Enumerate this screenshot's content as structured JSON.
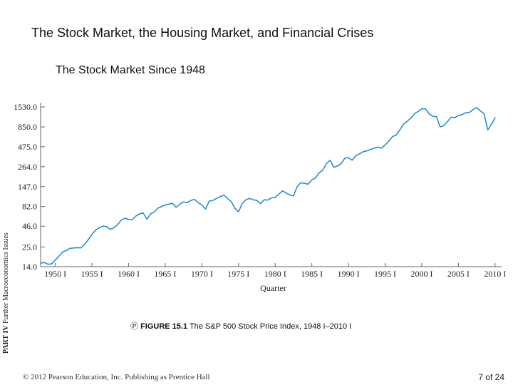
{
  "slide": {
    "title": "The Stock Market, the Housing Market, and Financial Crises",
    "side_label_part": "PART IV",
    "side_label_text": "Further Macroeconomics Issues",
    "footer_left": "© 2012 Pearson Education, Inc. Publishing as Prentice Hall",
    "footer_right": "7 of 24"
  },
  "caption": {
    "icon_glyph": "Ⓟ",
    "figure_number": "FIGURE 15.1",
    "figure_text": "The S&P 500 Stock Price Index, 1948 I–2010 I"
  },
  "colors": {
    "line": "#2a8fc8",
    "axis": "#666666",
    "text": "#222222"
  },
  "chart_data": {
    "type": "line",
    "title": "The Stock Market Since 1948",
    "xlabel": "Quarter",
    "ylabel": "",
    "yscale": "log",
    "ylim": [
      14.0,
      1530.0
    ],
    "xlim": [
      1948.0,
      2010.5
    ],
    "yticks": [
      "1530.0",
      "850.0",
      "475.0",
      "264.0",
      "147.0",
      "82.0",
      "46.0",
      "25.0",
      "14.0"
    ],
    "ytick_values": [
      1530.0,
      850.0,
      475.0,
      264.0,
      147.0,
      82.0,
      46.0,
      25.0,
      14.0
    ],
    "xticks": [
      "1950 I",
      "1955 I",
      "1960 I",
      "1965 I",
      "1970 I",
      "1975 I",
      "1980 I",
      "1985 I",
      "1990 I",
      "1995 I",
      "2000 I",
      "2005 I",
      "2010 I"
    ],
    "xtick_values": [
      1950,
      1955,
      1960,
      1965,
      1970,
      1975,
      1980,
      1985,
      1990,
      1995,
      2000,
      2005,
      2010
    ],
    "series": [
      {
        "name": "S&P 500 Stock Price Index",
        "x": [
          1948.0,
          1948.5,
          1949.0,
          1949.5,
          1950.0,
          1950.5,
          1951.0,
          1951.5,
          1952.0,
          1953.0,
          1953.5,
          1954.0,
          1954.5,
          1955.0,
          1955.5,
          1956.0,
          1956.5,
          1957.0,
          1957.5,
          1958.0,
          1958.5,
          1959.0,
          1959.5,
          1960.0,
          1960.5,
          1961.0,
          1961.5,
          1962.0,
          1962.5,
          1963.0,
          1963.5,
          1964.0,
          1964.5,
          1965.0,
          1965.5,
          1966.0,
          1966.5,
          1967.0,
          1967.5,
          1968.0,
          1968.5,
          1969.0,
          1969.5,
          1970.0,
          1970.5,
          1971.0,
          1971.5,
          1972.0,
          1972.5,
          1973.0,
          1973.5,
          1974.0,
          1974.5,
          1975.0,
          1975.5,
          1976.0,
          1976.5,
          1977.0,
          1977.5,
          1978.0,
          1978.5,
          1979.0,
          1979.5,
          1980.0,
          1980.5,
          1981.0,
          1981.5,
          1982.0,
          1982.5,
          1983.0,
          1983.5,
          1984.0,
          1984.5,
          1985.0,
          1985.5,
          1986.0,
          1986.5,
          1987.0,
          1987.5,
          1988.0,
          1988.5,
          1989.0,
          1989.5,
          1990.0,
          1990.5,
          1991.0,
          1991.5,
          1992.0,
          1992.5,
          1993.0,
          1993.5,
          1994.0,
          1994.5,
          1995.0,
          1995.5,
          1996.0,
          1996.5,
          1997.0,
          1997.5,
          1998.0,
          1998.5,
          1999.0,
          1999.5,
          2000.0,
          2000.5,
          2001.0,
          2001.5,
          2002.0,
          2002.5,
          2003.0,
          2003.5,
          2004.0,
          2004.5,
          2005.0,
          2005.5,
          2006.0,
          2006.5,
          2007.0,
          2007.5,
          2008.0,
          2008.5,
          2009.0,
          2009.5,
          2010.0
        ],
        "values": [
          15.5,
          15.8,
          15.0,
          15.2,
          17.0,
          19.0,
          21.5,
          22.5,
          24.0,
          24.5,
          24.3,
          27.0,
          31.0,
          36.0,
          41.0,
          44.0,
          46.0,
          45.5,
          42.0,
          44.0,
          48.0,
          55.0,
          58.0,
          56.0,
          55.5,
          62.0,
          66.0,
          68.0,
          56.5,
          66.0,
          70.0,
          78.0,
          82.0,
          86.0,
          88.0,
          90.0,
          80.0,
          88.0,
          94.0,
          92.0,
          98.0,
          101.0,
          92.0,
          86.0,
          76.0,
          96.0,
          98.0,
          104.0,
          110.0,
          114.0,
          104.0,
          95.0,
          78.0,
          70.0,
          90.0,
          100.0,
          104.0,
          100.0,
          98.0,
          89.0,
          100.0,
          99.0,
          106.0,
          107.0,
          118.0,
          130.0,
          122.0,
          115.0,
          112.0,
          148.0,
          165.0,
          162.0,
          158.0,
          180.0,
          190.0,
          220.0,
          240.0,
          290.0,
          320.0,
          260.0,
          270.0,
          290.0,
          340.0,
          345.0,
          320.0,
          365.0,
          385.0,
          410.0,
          420.0,
          440.0,
          455.0,
          470.0,
          455.0,
          500.0,
          560.0,
          640.0,
          670.0,
          780.0,
          920.0,
          1000.0,
          1100.0,
          1250.0,
          1340.0,
          1450.0,
          1450.0,
          1250.0,
          1160.0,
          1150.0,
          850.0,
          880.0,
          995.0,
          1130.0,
          1120.0,
          1190.0,
          1220.0,
          1290.0,
          1300.0,
          1420.0,
          1500.0,
          1360.0,
          1250.0,
          780.0,
          920.0,
          1110.0
        ]
      }
    ]
  }
}
